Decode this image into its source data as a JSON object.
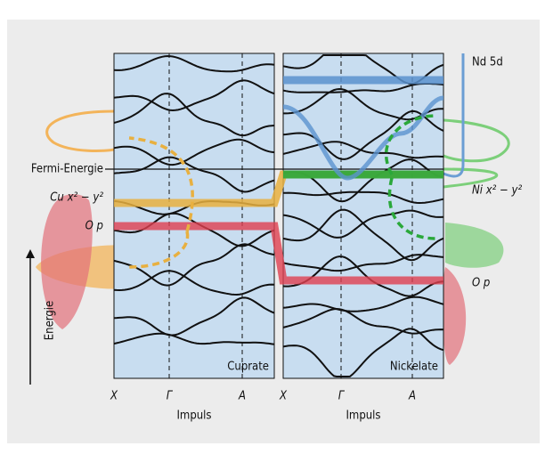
{
  "labels": {
    "nd5d": "Nd 5d",
    "fermi": "Fermi-Energie",
    "cu_orbital": "Cu x² − y²",
    "cu_op": "O p",
    "ni_orbital": "Ni x² − y²",
    "ni_op": "O p",
    "energy_axis": "Energie"
  },
  "panels": [
    {
      "name": "Cuprate",
      "kpoints": [
        "X",
        "Γ",
        "A"
      ],
      "axis_label": "Impuls"
    },
    {
      "name": "Nickelate",
      "kpoints": [
        "X",
        "Γ",
        "A"
      ],
      "axis_label": "Impuls"
    }
  ]
}
